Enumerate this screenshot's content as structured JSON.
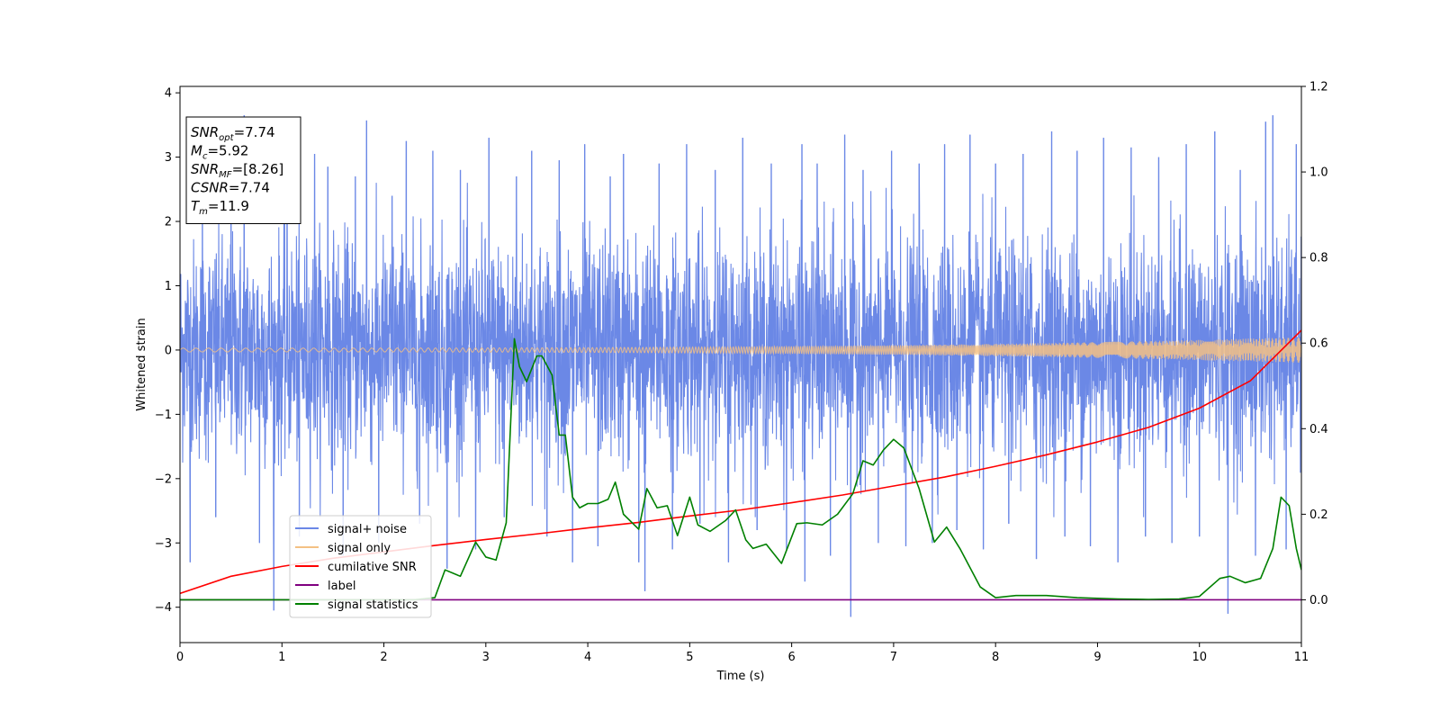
{
  "chart_data": {
    "type": "line",
    "xlabel": "Time (s)",
    "ylabel": "Whitened strain",
    "ylabel_right": "",
    "xlim": [
      0,
      11
    ],
    "ylim_left": [
      -4.55,
      4.1
    ],
    "ylim_right": [
      -0.1,
      1.2
    ],
    "x_ticks": [
      0,
      1,
      2,
      3,
      4,
      5,
      6,
      7,
      8,
      9,
      10,
      11
    ],
    "x_tick_labels": [
      "0",
      "1",
      "2",
      "3",
      "4",
      "5",
      "6",
      "7",
      "8",
      "9",
      "10",
      "11"
    ],
    "y_left_ticks": [
      -4,
      -3,
      -2,
      -1,
      0,
      1,
      2,
      3,
      4
    ],
    "y_left_tick_labels": [
      "−4",
      "−3",
      "−2",
      "−1",
      "0",
      "1",
      "2",
      "3",
      "4"
    ],
    "y_right_ticks": [
      0.0,
      0.2,
      0.4,
      0.6,
      0.8,
      1.0,
      1.2
    ],
    "y_right_tick_labels": [
      "0.0",
      "0.2",
      "0.4",
      "0.6",
      "0.8",
      "1.0",
      "1.2"
    ],
    "grid": false,
    "legend_position": "lower-left",
    "annotation": {
      "lines": [
        {
          "base": "SNR",
          "sub": "opt",
          "value": "=7.74"
        },
        {
          "base": "M",
          "sub": "c",
          "value": "=5.92"
        },
        {
          "base": "SNR",
          "sub": "MF",
          "value": "=[8.26]"
        },
        {
          "base": "CSNR",
          "sub": "",
          "value": "=7.74"
        },
        {
          "base": "T",
          "sub": "m",
          "value": "=11.9"
        }
      ]
    },
    "series": [
      {
        "name": "signal+ noise",
        "axis": "left",
        "color": "#6b88e6",
        "style": "noise",
        "envelope_sigma": 0.85,
        "spikes": [
          [
            0.1,
            -3.3
          ],
          [
            0.22,
            2.3
          ],
          [
            0.35,
            -2.6
          ],
          [
            0.5,
            2.9
          ],
          [
            0.63,
            3.65
          ],
          [
            0.78,
            -3.0
          ],
          [
            0.92,
            -4.05
          ],
          [
            1.05,
            2.6
          ],
          [
            1.17,
            -2.9
          ],
          [
            1.32,
            3.05
          ],
          [
            1.45,
            2.85
          ],
          [
            1.6,
            -3.2
          ],
          [
            1.72,
            2.7
          ],
          [
            1.83,
            3.57
          ],
          [
            1.95,
            -3.0
          ],
          [
            2.08,
            2.4
          ],
          [
            2.22,
            3.25
          ],
          [
            2.35,
            -2.7
          ],
          [
            2.48,
            3.1
          ],
          [
            2.62,
            -3.4
          ],
          [
            2.75,
            2.8
          ],
          [
            2.9,
            -3.1
          ],
          [
            3.03,
            3.3
          ],
          [
            3.18,
            -2.6
          ],
          [
            3.3,
            2.7
          ],
          [
            3.45,
            3.1
          ],
          [
            3.6,
            -2.9
          ],
          [
            3.72,
            2.95
          ],
          [
            3.85,
            -3.3
          ],
          [
            3.97,
            3.2
          ],
          [
            4.1,
            -3.05
          ],
          [
            4.22,
            2.7
          ],
          [
            4.35,
            3.05
          ],
          [
            4.5,
            -3.3
          ],
          [
            4.56,
            -3.75
          ],
          [
            4.7,
            2.9
          ],
          [
            4.83,
            -3.1
          ],
          [
            4.97,
            3.2
          ],
          [
            5.1,
            -2.7
          ],
          [
            5.25,
            2.8
          ],
          [
            5.38,
            -3.3
          ],
          [
            5.52,
            3.3
          ],
          [
            5.66,
            -2.8
          ],
          [
            5.8,
            2.9
          ],
          [
            5.95,
            -3.1
          ],
          [
            6.1,
            3.2
          ],
          [
            6.13,
            -3.6
          ],
          [
            6.25,
            2.9
          ],
          [
            6.38,
            -3.2
          ],
          [
            6.52,
            3.35
          ],
          [
            6.58,
            -4.15
          ],
          [
            6.7,
            2.8
          ],
          [
            6.85,
            -3.0
          ],
          [
            6.98,
            3.1
          ],
          [
            7.12,
            -3.05
          ],
          [
            7.25,
            2.9
          ],
          [
            7.38,
            -3.0
          ],
          [
            7.5,
            3.2
          ],
          [
            7.62,
            -2.8
          ],
          [
            7.75,
            3.35
          ],
          [
            7.88,
            -3.1
          ],
          [
            8.0,
            2.9
          ],
          [
            8.13,
            -2.7
          ],
          [
            8.27,
            3.05
          ],
          [
            8.4,
            -3.25
          ],
          [
            8.55,
            3.4
          ],
          [
            8.68,
            -2.9
          ],
          [
            8.8,
            3.1
          ],
          [
            8.93,
            -3.05
          ],
          [
            9.06,
            3.3
          ],
          [
            9.2,
            -3.3
          ],
          [
            9.33,
            3.15
          ],
          [
            9.47,
            -2.9
          ],
          [
            9.6,
            3.0
          ],
          [
            9.73,
            -3.0
          ],
          [
            9.87,
            3.2
          ],
          [
            10.0,
            -2.9
          ],
          [
            10.15,
            3.4
          ],
          [
            10.28,
            -4.1
          ],
          [
            10.4,
            2.8
          ],
          [
            10.55,
            -3.2
          ],
          [
            10.65,
            3.55
          ],
          [
            10.72,
            3.65
          ],
          [
            10.85,
            -3.1
          ],
          [
            10.95,
            3.2
          ]
        ]
      },
      {
        "name": "signal only",
        "axis": "left",
        "color": "#f4c184",
        "style": "chirp",
        "amplitude_start": 0.03,
        "amplitude_end": 0.2
      },
      {
        "name": "cumilative SNR",
        "axis": "right",
        "color": "#ff0000",
        "x": [
          0,
          0.5,
          1,
          1.5,
          2,
          2.5,
          3,
          3.5,
          4,
          4.5,
          5,
          5.5,
          6,
          6.5,
          7,
          7.5,
          8,
          8.5,
          9,
          9.5,
          10,
          10.5,
          11
        ],
        "values": [
          0.015,
          0.055,
          0.078,
          0.097,
          0.112,
          0.127,
          0.141,
          0.154,
          0.168,
          0.181,
          0.196,
          0.21,
          0.227,
          0.245,
          0.266,
          0.287,
          0.312,
          0.339,
          0.369,
          0.403,
          0.448,
          0.512,
          0.63
        ]
      },
      {
        "name": "label",
        "axis": "right",
        "color": "#800080",
        "x": [
          0,
          11
        ],
        "values": [
          0.0,
          0.0
        ]
      },
      {
        "name": "signal statistics",
        "axis": "right",
        "color": "#008000",
        "x": [
          0,
          0.5,
          1,
          1.5,
          2,
          2.3,
          2.5,
          2.6,
          2.75,
          2.9,
          3.0,
          3.1,
          3.2,
          3.28,
          3.33,
          3.4,
          3.5,
          3.55,
          3.65,
          3.72,
          3.78,
          3.85,
          3.92,
          4.0,
          4.1,
          4.2,
          4.27,
          4.35,
          4.5,
          4.58,
          4.68,
          4.78,
          4.88,
          5.0,
          5.08,
          5.2,
          5.35,
          5.45,
          5.55,
          5.62,
          5.75,
          5.9,
          6.05,
          6.15,
          6.3,
          6.45,
          6.6,
          6.7,
          6.8,
          6.9,
          7.0,
          7.1,
          7.25,
          7.4,
          7.52,
          7.65,
          7.85,
          8.0,
          8.2,
          8.5,
          8.8,
          9.2,
          9.5,
          9.8,
          10.0,
          10.2,
          10.3,
          10.45,
          10.6,
          10.72,
          10.8,
          10.88,
          10.95,
          11.0
        ],
        "values": [
          0.0,
          0.0,
          0.0,
          0.0,
          0.0,
          0.0,
          0.005,
          0.07,
          0.055,
          0.135,
          0.1,
          0.093,
          0.18,
          0.61,
          0.545,
          0.51,
          0.57,
          0.57,
          0.525,
          0.385,
          0.385,
          0.24,
          0.215,
          0.225,
          0.225,
          0.235,
          0.275,
          0.2,
          0.165,
          0.26,
          0.215,
          0.22,
          0.15,
          0.24,
          0.175,
          0.16,
          0.185,
          0.21,
          0.14,
          0.12,
          0.13,
          0.085,
          0.178,
          0.18,
          0.175,
          0.2,
          0.248,
          0.325,
          0.315,
          0.35,
          0.375,
          0.355,
          0.26,
          0.135,
          0.17,
          0.12,
          0.03,
          0.005,
          0.01,
          0.01,
          0.005,
          0.002,
          0.001,
          0.002,
          0.008,
          0.05,
          0.055,
          0.04,
          0.05,
          0.12,
          0.24,
          0.22,
          0.12,
          0.07
        ]
      }
    ]
  }
}
